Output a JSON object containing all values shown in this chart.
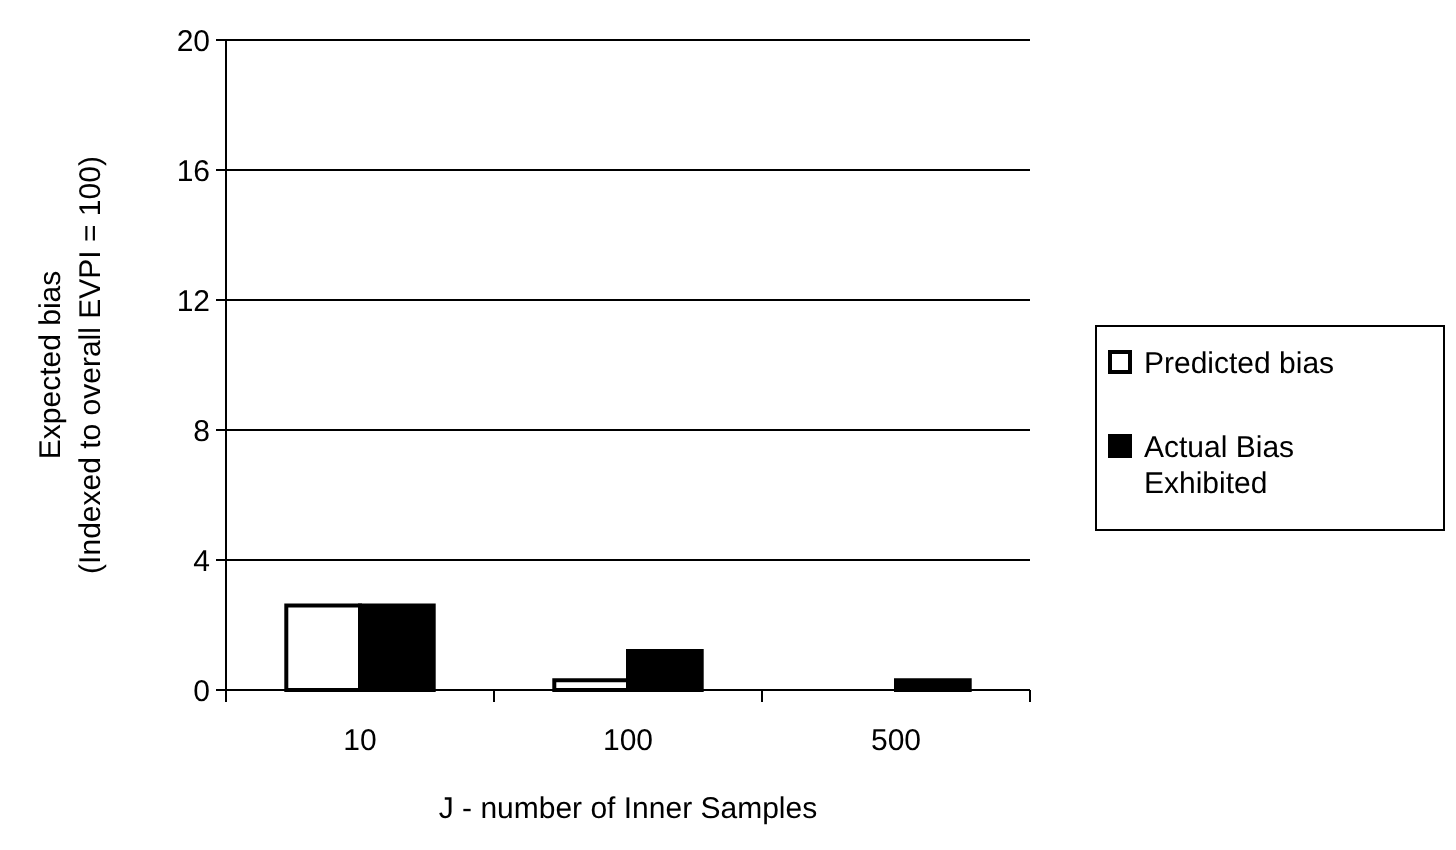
{
  "chart_data": {
    "type": "bar",
    "xlabel": "J - number of Inner Samples",
    "ylabel": "Expected bias\n(Indexed to overall EVPI = 100)",
    "categories": [
      "10",
      "100",
      "500"
    ],
    "series": [
      {
        "name": "Predicted bias",
        "color": "#ffffff",
        "values": [
          2.6,
          0.3,
          0
        ]
      },
      {
        "name": "Actual Bias\nExhibited",
        "color": "#000000",
        "values": [
          2.6,
          1.2,
          0.3
        ]
      }
    ],
    "ylim": [
      0,
      20
    ],
    "yticks": [
      0,
      4,
      8,
      12,
      16,
      20
    ],
    "grid": "y",
    "legend": "right"
  }
}
